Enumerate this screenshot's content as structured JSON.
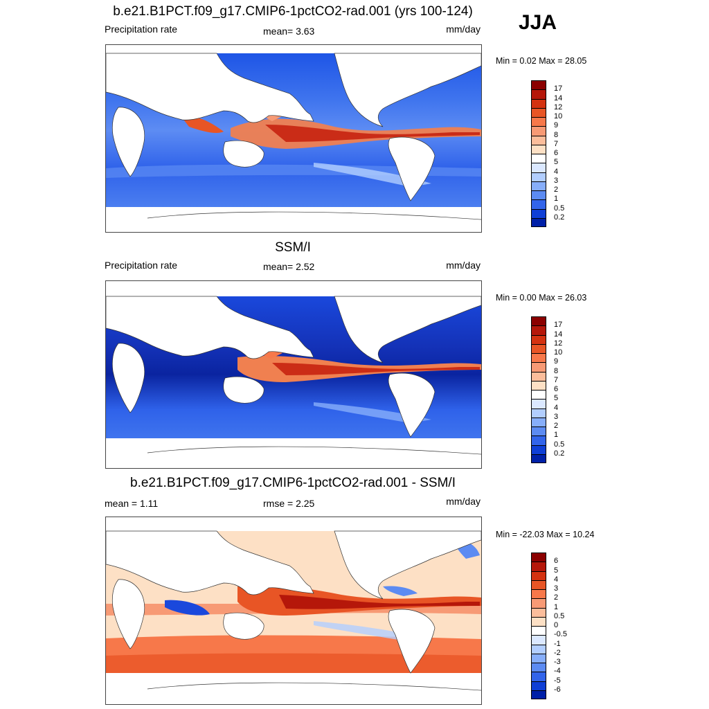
{
  "season": "JJA",
  "panels": [
    {
      "title": "b.e21.B1PCT.f09_g17.CMIP6-1pctCO2-rad.001 (yrs 100-124)",
      "left_label": "Precipitation rate",
      "center_label": "mean=   3.63",
      "right_label": "mm/day",
      "minmax": "Min =   0.02 Max =  28.05",
      "colorbar": {
        "labels": [
          "17",
          "14",
          "12",
          "10",
          "9",
          "8",
          "7",
          "6",
          "5",
          "4",
          "3",
          "2",
          "1",
          "0.5",
          "0.2"
        ],
        "colors": [
          "#8b0000",
          "#b5170a",
          "#d43210",
          "#e85525",
          "#f7784a",
          "#f79a75",
          "#fbbd9b",
          "#fde0c5",
          "#ffffff",
          "#dbe8ff",
          "#b2ceff",
          "#87aefa",
          "#5c8bf2",
          "#3264ea",
          "#0f3fd6",
          "#0020a8"
        ]
      }
    },
    {
      "title": "SSM/I",
      "left_label": "Precipitation rate",
      "center_label": "mean=   2.52",
      "right_label": "mm/day",
      "minmax": "Min =   0.00 Max =  26.03",
      "colorbar": {
        "labels": [
          "17",
          "14",
          "12",
          "10",
          "9",
          "8",
          "7",
          "6",
          "5",
          "4",
          "3",
          "2",
          "1",
          "0.5",
          "0.2"
        ],
        "colors": [
          "#8b0000",
          "#b5170a",
          "#d43210",
          "#e85525",
          "#f7784a",
          "#f79a75",
          "#fbbd9b",
          "#fde0c5",
          "#ffffff",
          "#dbe8ff",
          "#b2ceff",
          "#87aefa",
          "#5c8bf2",
          "#3264ea",
          "#0f3fd6",
          "#0020a8"
        ]
      }
    },
    {
      "title": "b.e21.B1PCT.f09_g17.CMIP6-1pctCO2-rad.001 - SSM/I",
      "left_label": "mean =   1.11",
      "center_label": "rmse =   2.25",
      "right_label": "mm/day",
      "minmax": "Min = -22.03 Max =  10.24",
      "colorbar": {
        "labels": [
          "6",
          "5",
          "4",
          "3",
          "2",
          "1",
          "0.5",
          "0",
          "-0.5",
          "-1",
          "-2",
          "-3",
          "-4",
          "-5",
          "-6"
        ],
        "colors": [
          "#8b0000",
          "#b5170a",
          "#d43210",
          "#e85525",
          "#f7784a",
          "#f79a75",
          "#fbbd9b",
          "#fde0c5",
          "#ffffff",
          "#dbe8ff",
          "#b2ceff",
          "#87aefa",
          "#5c8bf2",
          "#3264ea",
          "#0f3fd6",
          "#0020a8"
        ]
      }
    }
  ]
}
